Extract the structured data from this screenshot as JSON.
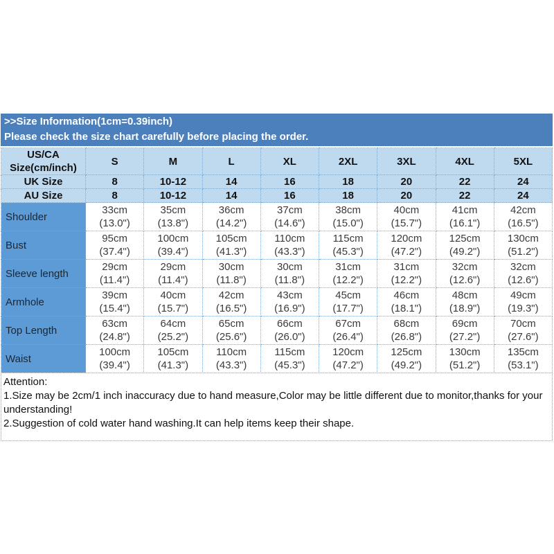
{
  "header": {
    "line1": ">>Size Information(1cm=0.39inch)",
    "line2": "Please check the size chart carefully before placing the order."
  },
  "size_table": {
    "corner_label": "US/CA\nSize(cm/inch)",
    "size_headers": [
      "S",
      "M",
      "L",
      "XL",
      "2XL",
      "3XL",
      "4XL",
      "5XL"
    ],
    "uk_row": {
      "label": "UK Size",
      "values": [
        "8",
        "10-12",
        "14",
        "16",
        "18",
        "20",
        "22",
        "24"
      ]
    },
    "au_row": {
      "label": "AU Size",
      "values": [
        "8",
        "10-12",
        "14",
        "16",
        "18",
        "20",
        "22",
        "24"
      ]
    },
    "measure_rows": [
      {
        "label": "Shoulder",
        "cells": [
          "33cm\n(13.0\")",
          "35cm\n(13.8\")",
          "36cm\n(14.2\")",
          "37cm\n(14.6\")",
          "38cm\n(15.0\")",
          "40cm\n(15.7\")",
          "41cm\n(16.1\")",
          "42cm\n(16.5\")"
        ]
      },
      {
        "label": "Bust",
        "cells": [
          "95cm\n(37.4\")",
          "100cm\n(39.4\")",
          "105cm\n(41.3\")",
          "110cm\n(43.3\")",
          "115cm\n(45.3\")",
          "120cm\n(47.2\")",
          "125cm\n(49.2\")",
          "130cm\n(51.2\")"
        ]
      },
      {
        "label": "Sleeve length",
        "cells": [
          "29cm\n(11.4\")",
          "29cm\n(11.4\")",
          "30cm\n(11.8\")",
          "30cm\n(11.8\")",
          "31cm\n(12.2\")",
          "31cm\n(12.2\")",
          "32cm\n(12.6\")",
          "32cm\n(12.6\")"
        ]
      },
      {
        "label": "Armhole",
        "cells": [
          "39cm\n(15.4\")",
          "40cm\n(15.7\")",
          "42cm\n(16.5\")",
          "43cm\n(16.9\")",
          "45cm\n(17.7\")",
          "46cm\n(18.1\")",
          "48cm\n(18.9\")",
          "49cm\n(19.3\")"
        ]
      },
      {
        "label": "Top Length",
        "cells": [
          "63cm\n(24.8\")",
          "64cm\n(25.2\")",
          "65cm\n(25.6\")",
          "66cm\n(26.0\")",
          "67cm\n(26.4\")",
          "68cm\n(26.8\")",
          "69cm\n(27.2\")",
          "70cm\n(27.6\")"
        ]
      },
      {
        "label": "Waist",
        "cells": [
          "100cm\n(39.4\")",
          "105cm\n(41.3\")",
          "110cm\n(43.3\")",
          "115cm\n(45.3\")",
          "120cm\n(47.2\")",
          "125cm\n(49.2\")",
          "130cm\n(51.2\")",
          "135cm\n(53.1\")"
        ]
      }
    ]
  },
  "attention": {
    "title": "Attention:",
    "note1": "1.Size may be 2cm/1 inch inaccuracy due to hand measure,Color may be little different due to monitor,thanks for your understanding!",
    "note2": "2.Suggestion of cold water hand washing.It can help items keep their shape."
  },
  "colors": {
    "banner_bg": "#4C80BD",
    "banner_text": "#FFFFFF",
    "header_row_bg": "#BFD9EF",
    "label_column_bg": "#5C9BD5",
    "grid_dotted_border": "#7FA8CC",
    "attention_border": "#7F9DB9",
    "body_text": "#111111"
  }
}
